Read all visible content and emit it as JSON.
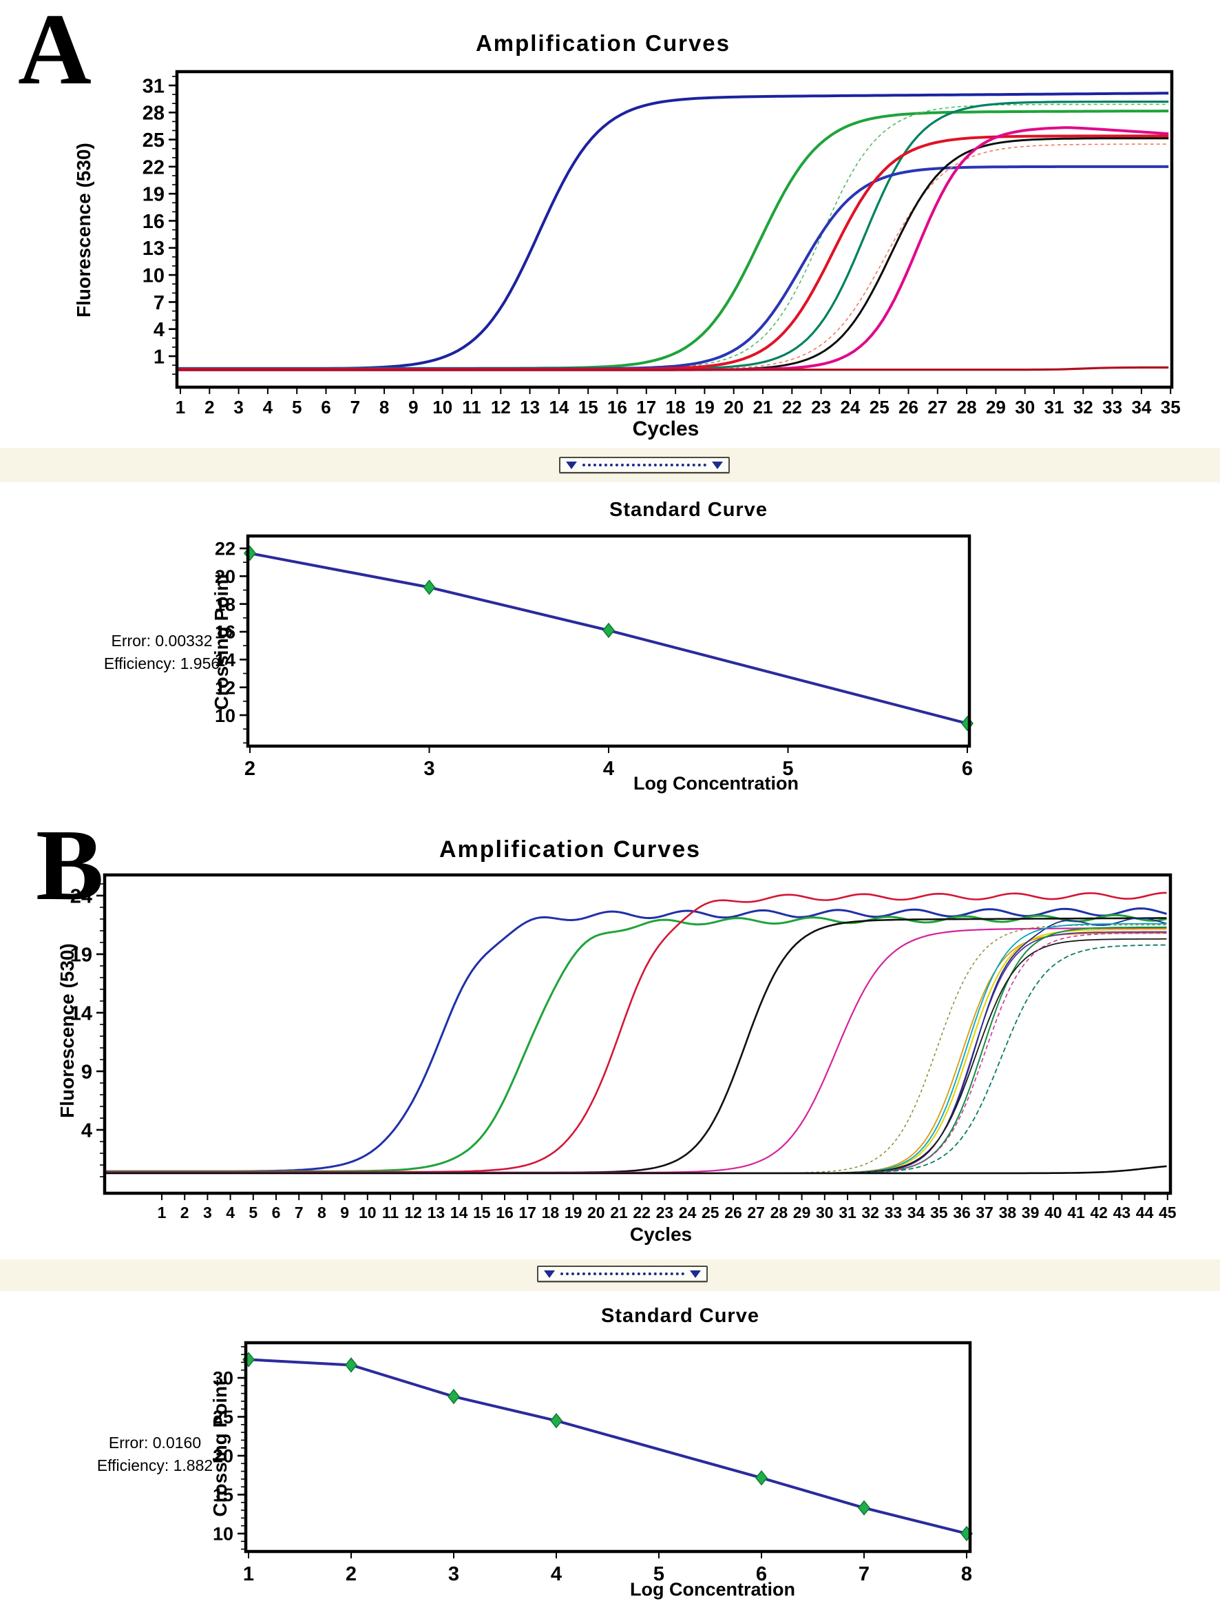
{
  "panels": {
    "a": {
      "label": "A"
    },
    "b": {
      "label": "B"
    }
  },
  "accent_colors": {
    "regression_line": "#2b2b9c",
    "standard_point": "#1fae4a",
    "slider_handle": "#1d2b8f",
    "axis": "#000000"
  },
  "icons": {
    "slider_left_handle": "triangle-down-icon",
    "slider_right_handle": "triangle-down-icon"
  },
  "chart_data": [
    {
      "id": "amp_a",
      "type": "line",
      "title": "Amplification Curves",
      "xlabel": "Cycles",
      "ylabel": "Fluorescence (530)",
      "grid": false,
      "legend": "none",
      "xlim": [
        1,
        35
      ],
      "ylim": [
        -2.5,
        32.5
      ],
      "x_ticks": [
        1,
        2,
        3,
        4,
        5,
        6,
        7,
        8,
        9,
        10,
        11,
        12,
        13,
        14,
        15,
        16,
        17,
        18,
        19,
        20,
        21,
        22,
        23,
        24,
        25,
        26,
        27,
        28,
        29,
        30,
        31,
        32,
        33,
        34,
        35
      ],
      "y_ticks": [
        31,
        28,
        25,
        22,
        19,
        16,
        13,
        10,
        7,
        4,
        1
      ],
      "curves": [
        {
          "name": "curve-blue-early",
          "color": "#1c22a0",
          "width": 4,
          "base": -0.4,
          "plateau": 29.6,
          "mid": 13.3,
          "k": 0.95,
          "drift": 0.025
        },
        {
          "name": "curve-green",
          "color": "#1fa33a",
          "width": 4,
          "base": -0.35,
          "plateau": 28.0,
          "mid": 20.9,
          "k": 0.95,
          "drift": 0.012
        },
        {
          "name": "curve-green-dashed",
          "color": "#55b868",
          "width": 1.6,
          "dash": "5 4",
          "base": -0.4,
          "plateau": 28.9,
          "mid": 23.0,
          "k": 1.0
        },
        {
          "name": "curve-teal",
          "color": "#00815f",
          "width": 3.2,
          "base": -0.4,
          "plateau": 29.2,
          "mid": 24.5,
          "k": 1.05
        },
        {
          "name": "curve-blue-low",
          "color": "#2a35b4",
          "width": 4,
          "base": -0.4,
          "plateau": 22.0,
          "mid": 22.3,
          "k": 1.0
        },
        {
          "name": "curve-red",
          "color": "#e01225",
          "width": 4,
          "base": -0.45,
          "plateau": 25.4,
          "mid": 23.4,
          "k": 1.0
        },
        {
          "name": "curve-salmon-dashed",
          "color": "#f07a60",
          "width": 1.6,
          "dash": "5 4",
          "base": -0.5,
          "plateau": 24.5,
          "mid": 25.2,
          "k": 0.95
        },
        {
          "name": "curve-black",
          "color": "#0d0d0d",
          "width": 3,
          "base": -0.55,
          "plateau": 25.15,
          "mid": 25.4,
          "k": 1.05
        },
        {
          "name": "curve-magenta",
          "color": "#e00a8a",
          "width": 4,
          "base": -0.5,
          "plateau": 26.4,
          "mid": 26.3,
          "k": 1.15,
          "decay_after": 31.5,
          "decay_rate": 0.22
        },
        {
          "name": "negative-control-flat",
          "color": "#b01020",
          "width": 3.2,
          "base": -0.5,
          "plateau": -0.25,
          "mid": 32.0,
          "k": 2.0
        }
      ]
    },
    {
      "id": "std_a",
      "type": "scatter",
      "title": "Standard Curve",
      "xlabel": "Log Concentration",
      "ylabel": "Crossing Point",
      "grid": false,
      "legend": "none",
      "xlim": [
        2,
        6
      ],
      "ylim": [
        7.8,
        22.9
      ],
      "x_ticks": [
        2,
        3,
        4,
        5,
        6
      ],
      "y_ticks": [
        22,
        20,
        18,
        16,
        14,
        12,
        10
      ],
      "points": [
        [
          2,
          21.65
        ],
        [
          3,
          19.2
        ],
        [
          4,
          16.1
        ],
        [
          6,
          9.4
        ]
      ],
      "annotations": {
        "error": "Error: 0.00332",
        "efficiency": "Efficiency: 1.956"
      }
    },
    {
      "id": "amp_b",
      "type": "line",
      "title": "Amplification Curves",
      "xlabel": "Cycles",
      "ylabel": "Fluorescence (530)",
      "grid": false,
      "legend": "none",
      "xlim": [
        1,
        45
      ],
      "ylim": [
        -1.4,
        25.8
      ],
      "x_ticks": [
        1,
        2,
        3,
        4,
        5,
        6,
        7,
        8,
        9,
        10,
        11,
        12,
        13,
        14,
        15,
        16,
        17,
        18,
        19,
        20,
        21,
        22,
        23,
        24,
        25,
        26,
        27,
        28,
        29,
        30,
        31,
        32,
        33,
        34,
        35,
        36,
        37,
        38,
        39,
        40,
        41,
        42,
        43,
        44,
        45
      ],
      "y_ticks": [
        24,
        19,
        14,
        9,
        4
      ],
      "curves": [
        {
          "name": "curve-blue",
          "color": "#2030a8",
          "width": 3,
          "base": 0.45,
          "plateau": 22.3,
          "mid": 13.1,
          "k": 0.85,
          "wiggle": 0.3,
          "drift": 0.01
        },
        {
          "name": "curve-green",
          "color": "#1fa33a",
          "width": 3,
          "base": 0.45,
          "plateau": 21.7,
          "mid": 17.0,
          "k": 0.9,
          "wiggle": 0.25,
          "drift": 0.015
        },
        {
          "name": "curve-red-top",
          "color": "#d41635",
          "width": 2.6,
          "base": 0.4,
          "plateau": 23.8,
          "mid": 21.0,
          "k": 0.9,
          "wiggle": 0.25,
          "drift": 0.008
        },
        {
          "name": "curve-black",
          "color": "#101010",
          "width": 2.6,
          "base": 0.35,
          "plateau": 21.9,
          "mid": 26.5,
          "k": 1.0,
          "drift": 0.01
        },
        {
          "name": "curve-magenta",
          "color": "#d6219b",
          "width": 2.2,
          "base": 0.35,
          "plateau": 21.1,
          "mid": 30.5,
          "k": 0.9,
          "drift": 0.01
        },
        {
          "name": "curve-olive-dashed",
          "color": "#8a8a2f",
          "width": 1.5,
          "dash": "4 4",
          "base": 0.3,
          "plateau": 21.5,
          "mid": 34.9,
          "k": 1.05
        },
        {
          "name": "curve-gold",
          "color": "#d9990f",
          "width": 1.8,
          "base": 0.3,
          "plateau": 20.8,
          "mid": 36.0,
          "k": 1.15
        },
        {
          "name": "curve-yellow",
          "color": "#e3d400",
          "width": 2,
          "base": 0.3,
          "plateau": 21.1,
          "mid": 36.3,
          "k": 1.15
        },
        {
          "name": "curve-purple",
          "color": "#5a2d9e",
          "width": 1.8,
          "base": 0.3,
          "plateau": 20.9,
          "mid": 36.5,
          "k": 1.2
        },
        {
          "name": "curve-navy",
          "color": "#1d2b8f",
          "width": 1.8,
          "base": 0.3,
          "plateau": 21.8,
          "mid": 36.6,
          "k": 1.15,
          "wiggle": 0.3
        },
        {
          "name": "curve-cyan",
          "color": "#00a8c0",
          "width": 1.8,
          "base": 0.3,
          "plateau": 21.6,
          "mid": 36.2,
          "k": 1.15
        },
        {
          "name": "curve-green-2",
          "color": "#149040",
          "width": 2,
          "base": 0.3,
          "plateau": 21.3,
          "mid": 36.9,
          "k": 1.15
        },
        {
          "name": "curve-black-2",
          "color": "#1a1a1a",
          "width": 1.8,
          "base": 0.3,
          "plateau": 20.3,
          "mid": 36.6,
          "k": 1.1
        },
        {
          "name": "curve-pink-dashed",
          "color": "#cc3399",
          "width": 1.6,
          "dash": "6 4",
          "base": 0.3,
          "plateau": 20.8,
          "mid": 37.0,
          "k": 1.1
        },
        {
          "name": "curve-teal-dashed",
          "color": "#0a7a66",
          "width": 1.8,
          "dash": "7 4",
          "base": 0.3,
          "plateau": 19.8,
          "mid": 37.7,
          "k": 1.0
        },
        {
          "name": "negative-control-flat",
          "color": "#0a0a0a",
          "width": 2.6,
          "base": 0.3,
          "plateau": 1.1,
          "mid": 44.0,
          "k": 1.1
        }
      ]
    },
    {
      "id": "std_b",
      "type": "scatter",
      "title": "Standard Curve",
      "xlabel": "Log Concentration",
      "ylabel": "Crossing Point",
      "grid": false,
      "legend": "none",
      "xlim": [
        1,
        8
      ],
      "ylim": [
        7.2,
        34.5
      ],
      "x_ticks": [
        1,
        2,
        3,
        4,
        5,
        6,
        7,
        8
      ],
      "y_ticks": [
        30,
        25,
        20,
        15,
        10
      ],
      "points": [
        [
          1,
          32.35
        ],
        [
          2,
          31.65
        ],
        [
          3,
          27.6
        ],
        [
          4,
          24.5
        ],
        [
          6,
          17.15
        ],
        [
          7,
          13.3
        ],
        [
          8,
          10.0
        ]
      ],
      "annotations": {
        "error": "Error: 0.0160",
        "efficiency": "Efficiency: 1.882"
      }
    }
  ]
}
